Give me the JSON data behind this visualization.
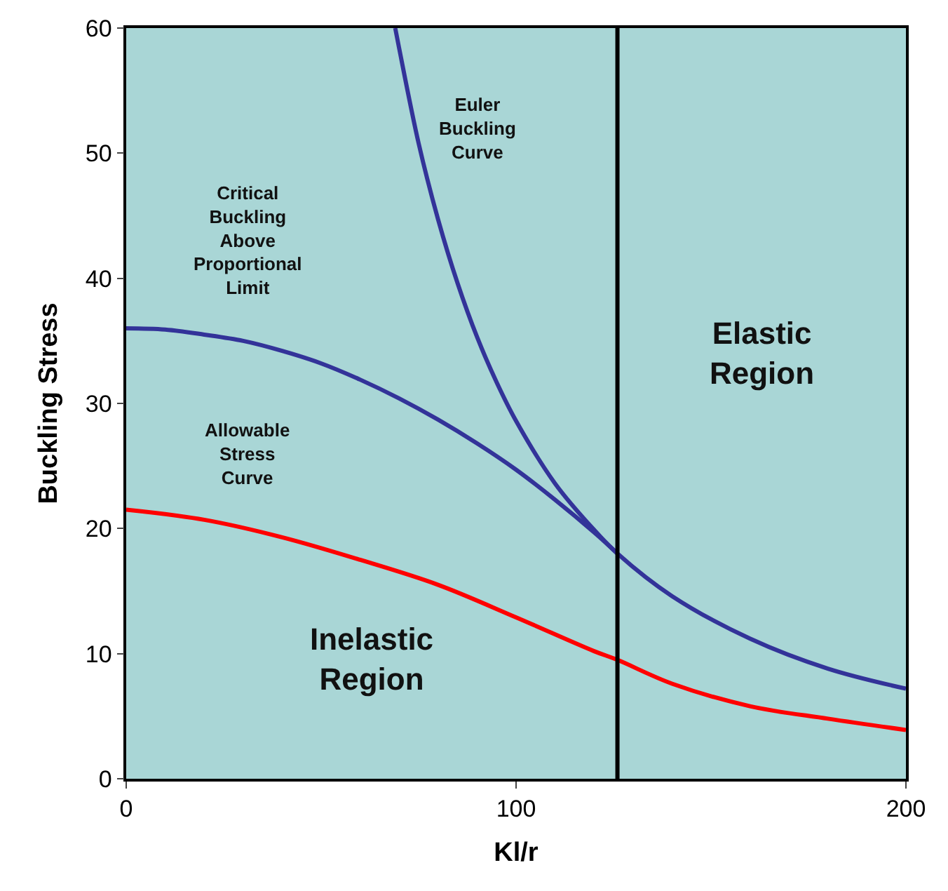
{
  "chart_data": {
    "type": "line",
    "xlabel": "Kl/r",
    "ylabel": "Buckling Stress",
    "xlim": [
      0,
      200
    ],
    "xticks": [
      0,
      100,
      200
    ],
    "ylim": [
      0,
      60
    ],
    "yticks": [
      0,
      10,
      20,
      30,
      40,
      50,
      60
    ],
    "grid": false,
    "marker": "none",
    "line_style": "solid",
    "series": [
      {
        "color": "#333399",
        "x": [
          69,
          70,
          75,
          80,
          85,
          90,
          95,
          100,
          110,
          120,
          126,
          140,
          160,
          180,
          200
        ],
        "values": [
          60,
          58.4,
          50.8,
          44.7,
          39.6,
          35.3,
          31.7,
          28.6,
          23.6,
          19.9,
          18.0,
          14.6,
          11.2,
          8.8,
          7.2
        ]
      },
      {
        "color": "#333399",
        "x": [
          0,
          10,
          20,
          30,
          40,
          50,
          60,
          70,
          80,
          90,
          100,
          110,
          120,
          126
        ],
        "values": [
          36,
          35.9,
          35.5,
          35,
          34.2,
          33.2,
          31.9,
          30.4,
          28.7,
          26.8,
          24.7,
          22.3,
          19.7,
          18
        ]
      },
      {
        "color": "#ff0000",
        "x": [
          0,
          20,
          40,
          60,
          80,
          100,
          120,
          126,
          140,
          160,
          180,
          200
        ],
        "values": [
          21.5,
          20.7,
          19.3,
          17.5,
          15.5,
          12.9,
          10.2,
          9.5,
          7.6,
          5.8,
          4.8,
          3.9
        ]
      }
    ],
    "ref_lines": [
      {
        "axis": "x",
        "value": 126,
        "color": "#000000"
      }
    ],
    "annotations": [
      "Euler\nBuckling\nCurve",
      "Critical\nBuckling\nAbove\nProportional\nLimit",
      "Allowable\nStress\nCurve",
      "Elastic\nRegion",
      "Inelastic\nRegion"
    ]
  }
}
